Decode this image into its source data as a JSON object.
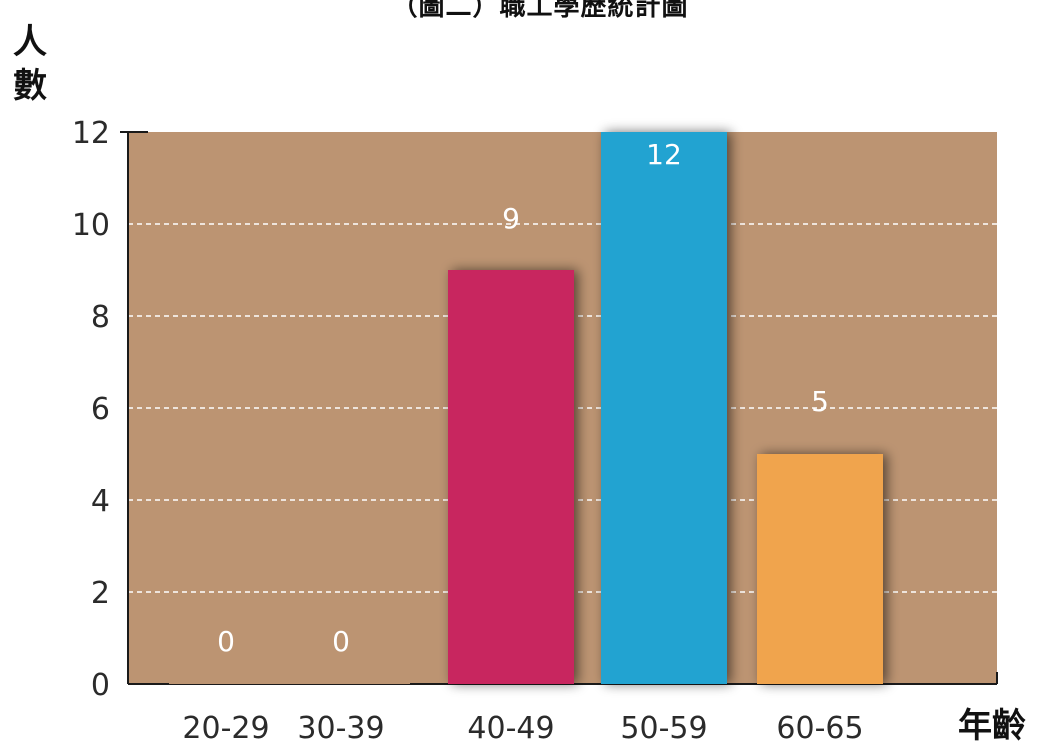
{
  "chart_data": {
    "type": "bar",
    "title": "（圖二）職工學歷統計圖",
    "ylabel": "人數",
    "xlabel": "年齡",
    "categories": [
      "20-29",
      "30-39",
      "40-49",
      "50-59",
      "60-65"
    ],
    "values": [
      0,
      0,
      9,
      12,
      5
    ],
    "data_labels": [
      "0",
      "0",
      "9",
      "12",
      "5"
    ],
    "ylim": [
      0,
      12
    ],
    "yticks": [
      "0",
      "2",
      "4",
      "6",
      "8",
      "10",
      "12"
    ],
    "grid": "horizontal dashed",
    "legend": "none"
  },
  "colors": {
    "plot_background": "#BC9472",
    "grid": "#ffffff",
    "axis": "#1a1a1a",
    "data_label": "#ffffff",
    "bars": [
      "#BC9472",
      "#BC9472",
      "#C8285E",
      "#21A3D1",
      "#F0A44D"
    ]
  }
}
